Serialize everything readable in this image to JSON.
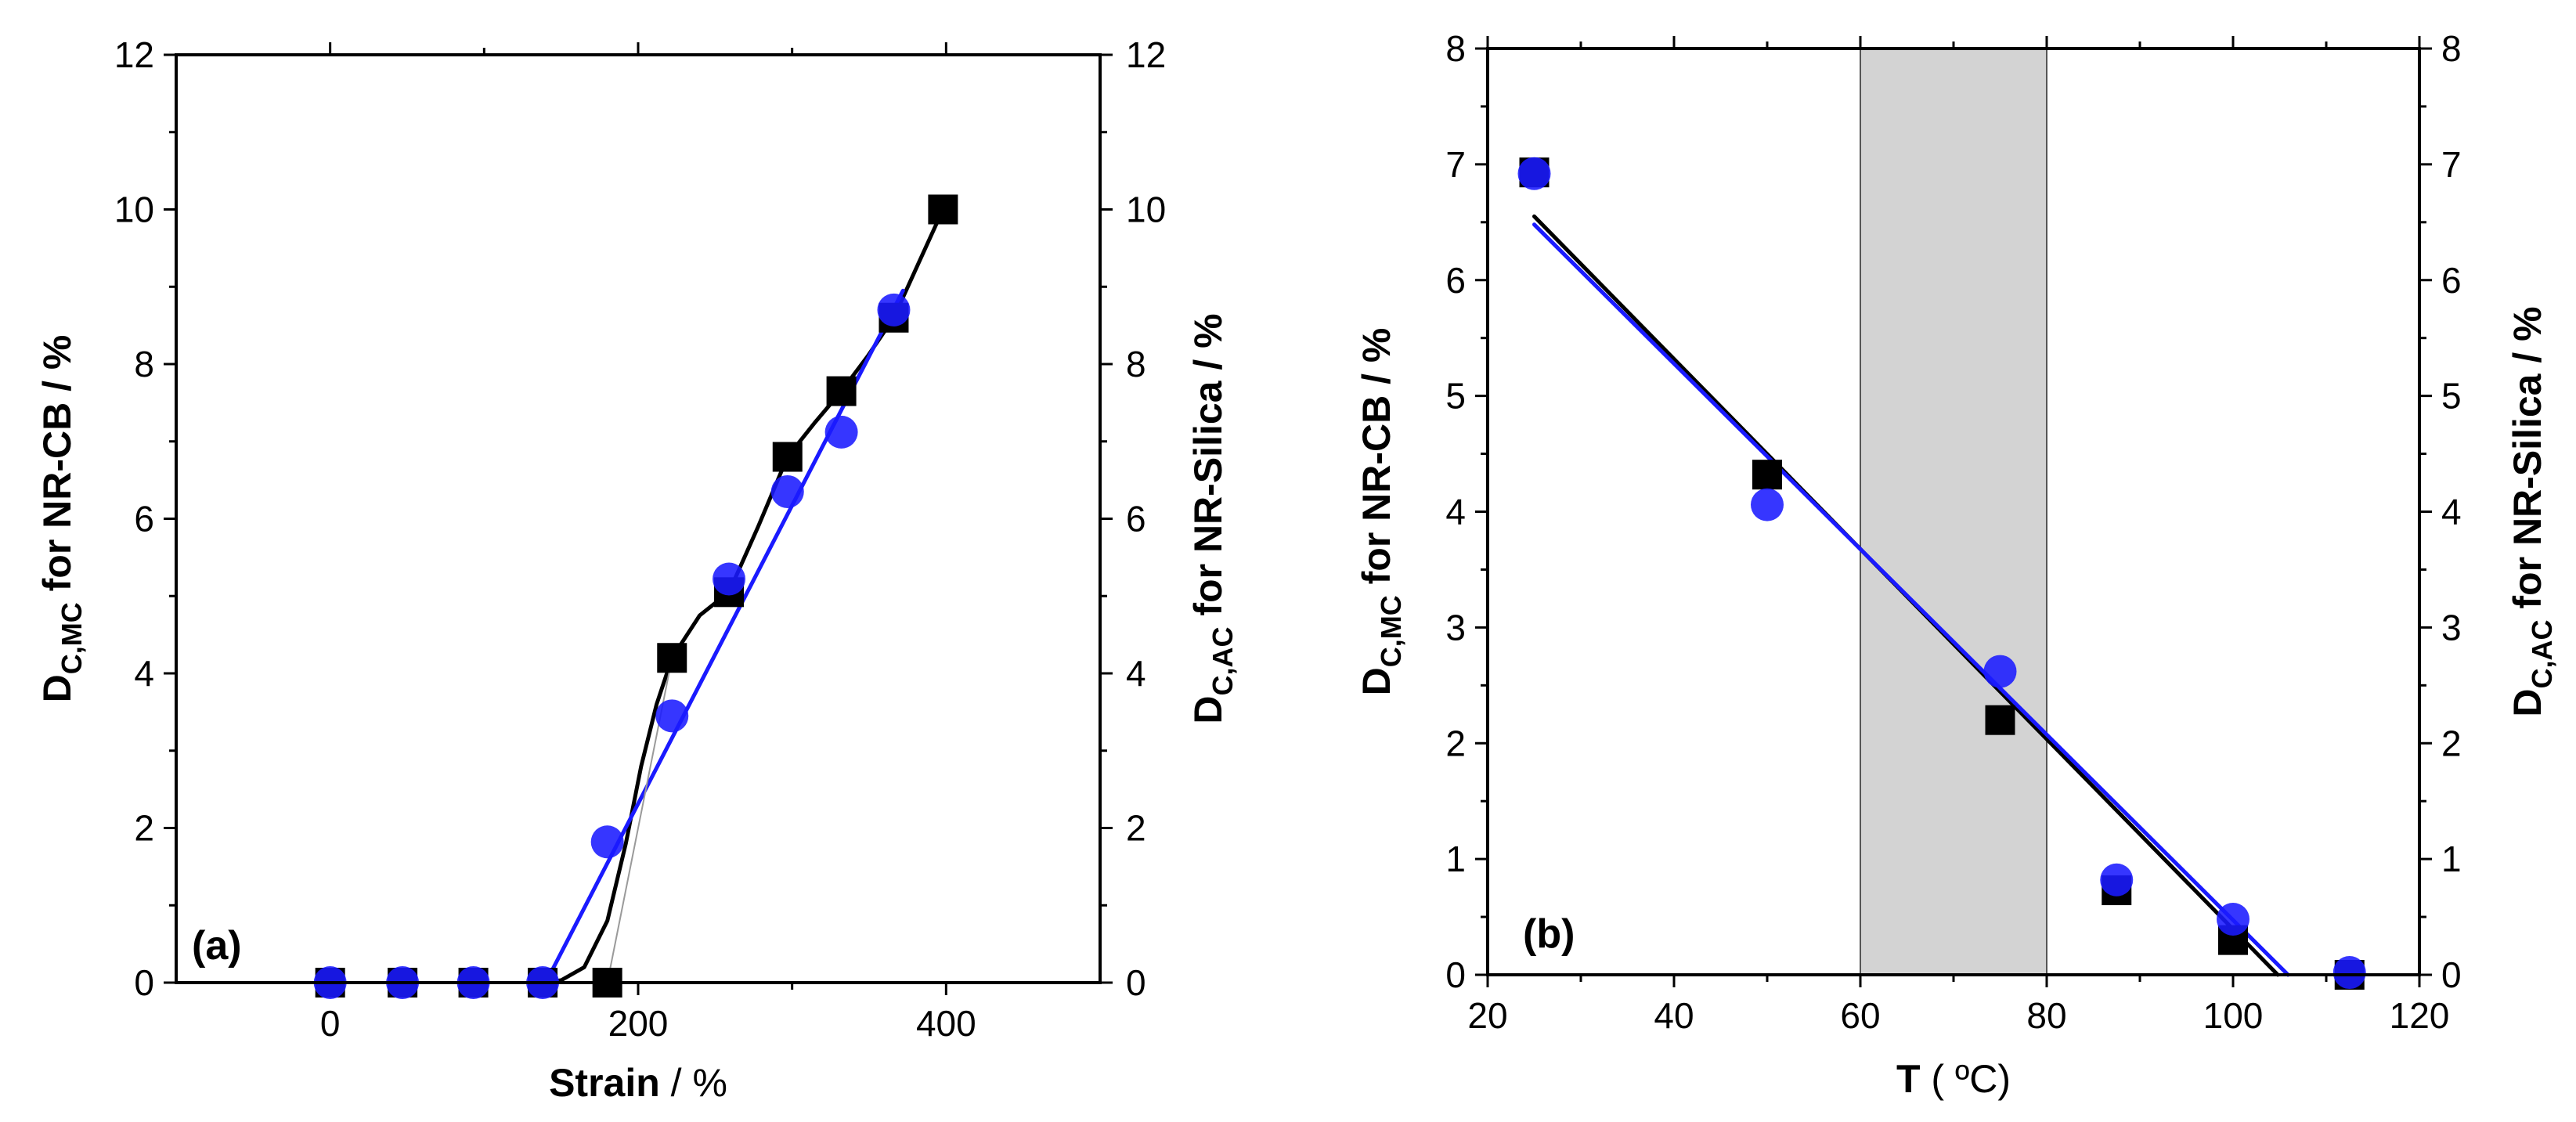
{
  "colors": {
    "black_series": "#000000",
    "blue_series": "#1a1aff",
    "shade": "#d3d3d3",
    "thin_line": "#9a9a9a"
  },
  "chart_data": [
    {
      "type": "scatter",
      "panel_label": "(a)",
      "xlabel": {
        "bold": "Strain",
        "rest": " / %"
      },
      "ylabel_left": {
        "main": "D",
        "sub": "C,MC",
        "rest": " for NR-CB / %"
      },
      "ylabel_right": {
        "main": "D",
        "sub": "C,AC",
        "rest": " for NR-Silica / %"
      },
      "xlim": [
        -100,
        500
      ],
      "ylim": [
        0,
        12
      ],
      "x_ticks": [
        0,
        200,
        400
      ],
      "x_tick_labels": [
        "0",
        "200",
        "400"
      ],
      "y_ticks": [
        0,
        2,
        4,
        6,
        8,
        10,
        12
      ],
      "y_tick_labels": [
        "0",
        "2",
        "4",
        "6",
        "8",
        "10",
        "12"
      ],
      "series": [
        {
          "name": "NR-CB",
          "marker": "square",
          "color": "#000000",
          "points": [
            [
              0,
              0
            ],
            [
              47,
              0
            ],
            [
              93,
              0
            ],
            [
              138,
              0
            ],
            [
              180,
              0
            ],
            [
              222,
              4.2
            ],
            [
              259,
              5.05
            ],
            [
              297,
              6.8
            ],
            [
              332,
              7.65
            ],
            [
              366,
              8.6
            ],
            [
              398,
              10.0
            ]
          ]
        },
        {
          "name": "NR-Silica",
          "marker": "circle",
          "color": "#1a1aff",
          "points": [
            [
              0,
              0
            ],
            [
              47,
              0
            ],
            [
              93,
              0
            ],
            [
              138,
              0
            ],
            [
              180,
              1.82
            ],
            [
              222,
              3.45
            ],
            [
              259,
              5.22
            ],
            [
              297,
              6.35
            ],
            [
              332,
              7.12
            ],
            [
              366,
              8.7
            ]
          ]
        }
      ],
      "fits": [
        {
          "name": "NR-CB curve",
          "color": "#000000",
          "points": [
            [
              138,
              0
            ],
            [
              150,
              0.03
            ],
            [
              165,
              0.2
            ],
            [
              180,
              0.8
            ],
            [
              192,
              1.8
            ],
            [
              202,
              2.8
            ],
            [
              212,
              3.6
            ],
            [
              222,
              4.2
            ],
            [
              240,
              4.75
            ],
            [
              259,
              5.05
            ],
            [
              278,
              5.9
            ],
            [
              297,
              6.8
            ],
            [
              315,
              7.25
            ],
            [
              332,
              7.65
            ],
            [
              349,
              8.1
            ],
            [
              366,
              8.6
            ],
            [
              382,
              9.3
            ],
            [
              398,
              10.0
            ]
          ]
        },
        {
          "name": "NR-Silica fit",
          "color": "#1a1aff",
          "points": [
            [
              140,
              0
            ],
            [
              372,
              8.95
            ]
          ]
        },
        {
          "name": "NR-CB thin line",
          "color": "#9a9a9a",
          "points": [
            [
              180,
              0
            ],
            [
              222,
              4.2
            ]
          ]
        }
      ]
    },
    {
      "type": "scatter",
      "panel_label": "(b)",
      "xlabel": {
        "bold": "T",
        "rest": " ( ºC)"
      },
      "ylabel_left": {
        "main": "D",
        "sub": "C,MC",
        "rest": " for NR-CB / %"
      },
      "ylabel_right": {
        "main": "D",
        "sub": "C,AC",
        "rest": " for NR-Silica / %"
      },
      "xlim": [
        20,
        120
      ],
      "ylim": [
        0,
        8
      ],
      "x_ticks": [
        20,
        40,
        60,
        80,
        100,
        120
      ],
      "x_tick_labels": [
        "20",
        "40",
        "60",
        "80",
        "100",
        "120"
      ],
      "y_ticks": [
        0,
        1,
        2,
        3,
        4,
        5,
        6,
        7,
        8
      ],
      "y_tick_labels": [
        "0",
        "1",
        "2",
        "3",
        "4",
        "5",
        "6",
        "7",
        "8"
      ],
      "shaded_region": [
        60,
        80
      ],
      "series": [
        {
          "name": "NR-CB",
          "marker": "square",
          "color": "#000000",
          "points": [
            [
              25,
              6.93
            ],
            [
              50,
              4.32
            ],
            [
              75,
              2.2
            ],
            [
              87.5,
              0.73
            ],
            [
              100,
              0.3
            ],
            [
              112.5,
              0.0
            ]
          ]
        },
        {
          "name": "NR-Silica",
          "marker": "circle",
          "color": "#1a1aff",
          "points": [
            [
              25,
              6.92
            ],
            [
              50,
              4.06
            ],
            [
              75,
              2.62
            ],
            [
              87.5,
              0.82
            ],
            [
              100,
              0.48
            ],
            [
              112.5,
              0.02
            ]
          ]
        }
      ],
      "fits": [
        {
          "name": "NR-CB fit",
          "color": "#000000",
          "points": [
            [
              25,
              6.55
            ],
            [
              104.8,
              0
            ]
          ]
        },
        {
          "name": "NR-Silica fit",
          "color": "#1a1aff",
          "points": [
            [
              25,
              6.48
            ],
            [
              105.9,
              0
            ]
          ]
        }
      ]
    }
  ]
}
